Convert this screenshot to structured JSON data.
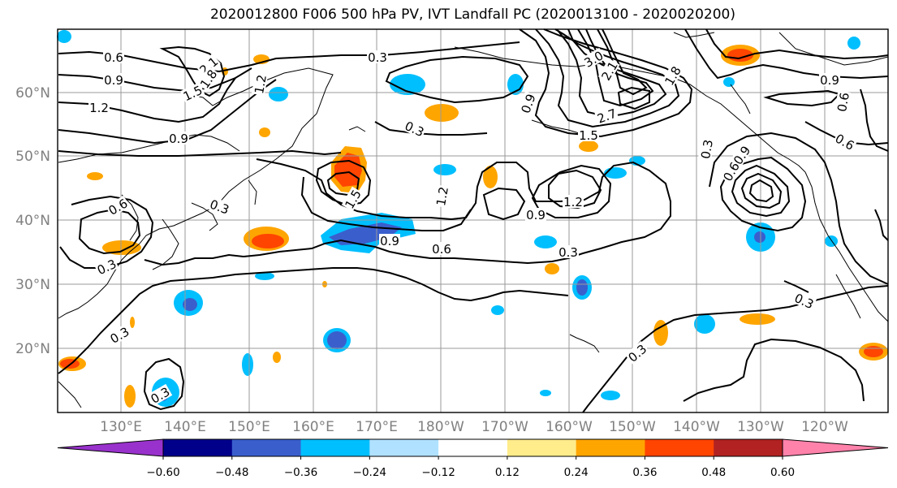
{
  "title": "2020012800 F006 500 hPa PV, IVT Landfall PC (2020013100 - 2020020200)",
  "map": {
    "lat_labels": [
      "60°N",
      "50°N",
      "40°N",
      "30°N",
      "20°N"
    ],
    "lon_labels": [
      "130°E",
      "140°E",
      "150°E",
      "160°E",
      "170°E",
      "180°W",
      "170°W",
      "160°W",
      "150°W",
      "140°W",
      "130°W",
      "120°W"
    ],
    "contour_labels": [
      "0.6",
      "2.1",
      "1.8",
      "0.9",
      "1.2",
      "1.5",
      "1.2",
      "0.9",
      "0.3",
      "0.3",
      "3.0",
      "2.7",
      "2.1",
      "1.8",
      "1.5",
      "0.9",
      "0.6",
      "0.9",
      "0.6",
      "0.3",
      "0.9",
      "0.6",
      "1.5",
      "1.2",
      "1.2",
      "0.9",
      "0.9",
      "0.6",
      "0.3",
      "0.3",
      "0.6",
      "0.3",
      "0.3",
      "0.3",
      "0.3",
      "0.3"
    ]
  },
  "colorbar": {
    "colors": [
      "#9932cc",
      "#00008b",
      "#3a5fcd",
      "#00bfff",
      "#b0e2ff",
      "#ffffff",
      "#ffec8b",
      "#ffa500",
      "#ff4500",
      "#b22222",
      "#ff82ab"
    ],
    "tick_labels": [
      "−0.60",
      "−0.48",
      "−0.36",
      "−0.24",
      "−0.12",
      "0.12",
      "0.24",
      "0.36",
      "0.48",
      "0.60"
    ]
  }
}
